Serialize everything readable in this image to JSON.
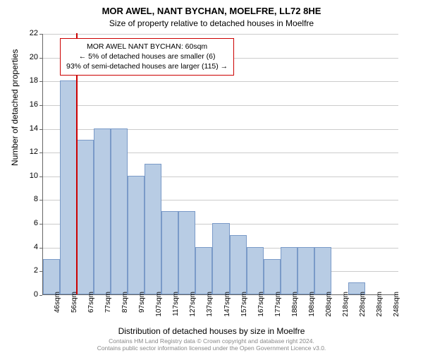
{
  "chart": {
    "type": "histogram",
    "title_line1": "MOR AWEL, NANT BYCHAN, MOELFRE, LL72 8HE",
    "title_line2": "Size of property relative to detached houses in Moelfre",
    "title_fontsize": 13,
    "subtitle_fontsize": 12,
    "x_axis_label": "Distribution of detached houses by size in Moelfre",
    "y_axis_label": "Number of detached properties",
    "axis_label_fontsize": 12,
    "tick_fontsize": 11,
    "background_color": "#ffffff",
    "bar_fill_color": "#b8cce4",
    "bar_border_color": "#7a9ac8",
    "grid_color": "#cccccc",
    "axis_color": "#666666",
    "ylim": [
      0,
      22
    ],
    "ytick_step": 2,
    "xlim_sqm": [
      40,
      255
    ],
    "x_categories": [
      "46sqm",
      "56sqm",
      "67sqm",
      "77sqm",
      "87sqm",
      "97sqm",
      "107sqm",
      "117sqm",
      "127sqm",
      "137sqm",
      "147sqm",
      "157sqm",
      "167sqm",
      "177sqm",
      "188sqm",
      "198sqm",
      "208sqm",
      "218sqm",
      "228sqm",
      "238sqm",
      "248sqm"
    ],
    "values": [
      3,
      18,
      13,
      14,
      14,
      10,
      11,
      7,
      7,
      4,
      6,
      5,
      4,
      3,
      4,
      4,
      4,
      0,
      1,
      0,
      0
    ],
    "marker": {
      "x_sqm": 60,
      "color": "#cc0000",
      "line_width": 2
    },
    "annotation": {
      "line1": "MOR AWEL NANT BYCHAN: 60sqm",
      "line2": "← 5% of detached houses are smaller (6)",
      "line3": "93% of semi-detached houses are larger (115) →",
      "border_color": "#cc0000",
      "fontsize": 10.5
    },
    "footer_line1": "Contains HM Land Registry data © Crown copyright and database right 2024.",
    "footer_line2": "Contains public sector information licensed under the Open Government Licence v3.0.",
    "footer_color": "#888888",
    "footer_fontsize": 8.5
  }
}
